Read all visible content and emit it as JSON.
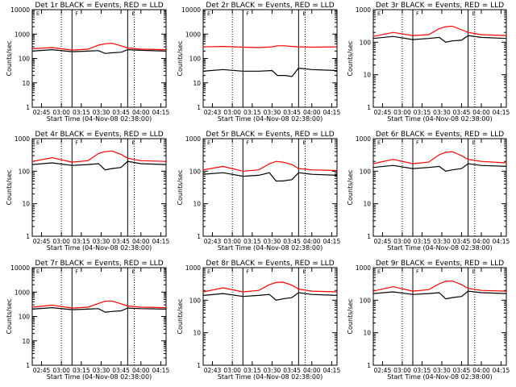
{
  "figure": {
    "y_axis_label": "Counts/sec",
    "x_axis_label": "Start Time (04-Nov-08 02:38:00)",
    "series_colors": {
      "events": "#000000",
      "lld": "#ff0000"
    },
    "flag_labels": [
      "E",
      "F",
      "E"
    ]
  },
  "chart_data": [
    {
      "type": "line",
      "title": "Det 1r BLACK = Events, RED = LLD",
      "x_ticks": [
        "02:45",
        "03:00",
        "03:15",
        "03:30",
        "03:45",
        "04:00",
        "04:15"
      ],
      "y_ticks": [
        "1",
        "10",
        "100",
        "1000",
        "10000"
      ],
      "y_scale": "log",
      "ylim": [
        1,
        10000
      ],
      "xlim": [
        "02:38",
        "04:19"
      ],
      "vertical_markers": {
        "solid": [
          "03:08",
          "03:50"
        ],
        "dotted": [
          "03:00",
          "03:55"
        ]
      },
      "x": [
        "02:38",
        "02:53",
        "03:08",
        "03:20",
        "03:28",
        "03:33",
        "03:38",
        "03:45",
        "03:50",
        "04:00",
        "04:19"
      ],
      "series": [
        {
          "values": [
            200,
            230,
            190,
            200,
            210,
            160,
            170,
            180,
            230,
            215,
            200
          ]
        },
        {
          "values": [
            250,
            280,
            220,
            240,
            350,
            400,
            420,
            330,
            270,
            240,
            230
          ]
        }
      ]
    },
    {
      "type": "line",
      "title": "Det 2r BLACK = Events, RED = LLD",
      "x_ticks": [
        "02:43",
        "03:00",
        "03:15",
        "03:30",
        "03:45",
        "04:00",
        "04:15"
      ],
      "y_ticks": [
        "1",
        "10",
        "100",
        "1000",
        "10000"
      ],
      "y_scale": "log",
      "ylim": [
        1,
        10000
      ],
      "xlim": [
        "02:38",
        "04:19"
      ],
      "vertical_markers": {
        "solid": [
          "03:08",
          "03:50"
        ],
        "dotted": [
          "03:00",
          "03:55"
        ]
      },
      "x": [
        "02:38",
        "02:53",
        "03:08",
        "03:20",
        "03:30",
        "03:34",
        "03:40",
        "03:45",
        "03:50",
        "04:00",
        "04:19"
      ],
      "series": [
        {
          "values": [
            30,
            35,
            30,
            30,
            32,
            20,
            20,
            18,
            40,
            35,
            32
          ]
        },
        {
          "values": [
            300,
            310,
            290,
            280,
            300,
            330,
            330,
            310,
            300,
            290,
            300
          ]
        }
      ]
    },
    {
      "type": "line",
      "title": "Det 3r BLACK = Events, RED = LLD",
      "x_ticks": [
        "02:45",
        "03:00",
        "03:15",
        "03:30",
        "03:45",
        "04:00",
        "04:15"
      ],
      "y_ticks": [
        "1",
        "10",
        "100",
        "1000"
      ],
      "y_scale": "log",
      "ylim": [
        1,
        1000
      ],
      "xlim": [
        "02:38",
        "04:19"
      ],
      "vertical_markers": {
        "solid": [
          "03:08",
          "03:50"
        ],
        "dotted": [
          "03:00",
          "03:55"
        ]
      },
      "x": [
        "02:38",
        "02:53",
        "03:08",
        "03:20",
        "03:28",
        "03:33",
        "03:38",
        "03:45",
        "03:50",
        "04:00",
        "04:19"
      ],
      "series": [
        {
          "values": [
            130,
            150,
            120,
            130,
            140,
            100,
            110,
            115,
            160,
            140,
            130
          ]
        },
        {
          "values": [
            150,
            200,
            160,
            170,
            260,
            300,
            310,
            240,
            200,
            170,
            160
          ]
        }
      ]
    },
    {
      "type": "line",
      "title": "Det 4r BLACK = Events, RED = LLD",
      "x_ticks": [
        "02:45",
        "03:00",
        "03:15",
        "03:30",
        "03:45",
        "04:00",
        "04:15"
      ],
      "y_ticks": [
        "1",
        "10",
        "100",
        "1000"
      ],
      "y_scale": "log",
      "ylim": [
        1,
        1000
      ],
      "xlim": [
        "02:38",
        "04:19"
      ],
      "vertical_markers": {
        "solid": [
          "03:08",
          "03:50"
        ],
        "dotted": [
          "03:00",
          "03:55"
        ]
      },
      "x": [
        "02:38",
        "02:53",
        "03:08",
        "03:20",
        "03:28",
        "03:33",
        "03:38",
        "03:45",
        "03:50",
        "04:00",
        "04:19"
      ],
      "series": [
        {
          "values": [
            160,
            180,
            150,
            160,
            170,
            110,
            120,
            130,
            200,
            170,
            160
          ]
        },
        {
          "values": [
            200,
            260,
            190,
            210,
            350,
            400,
            420,
            330,
            250,
            210,
            200
          ]
        }
      ]
    },
    {
      "type": "line",
      "title": "Det 5r BLACK = Events, RED = LLD",
      "x_ticks": [
        "02:43",
        "03:00",
        "03:15",
        "03:30",
        "03:45",
        "04:00",
        "04:15"
      ],
      "y_ticks": [
        "1",
        "10",
        "100",
        "1000"
      ],
      "y_scale": "log",
      "ylim": [
        1,
        1000
      ],
      "xlim": [
        "02:38",
        "04:19"
      ],
      "vertical_markers": {
        "solid": [
          "03:08",
          "03:50"
        ],
        "dotted": [
          "03:00",
          "03:55"
        ]
      },
      "x": [
        "02:38",
        "02:53",
        "03:08",
        "03:20",
        "03:28",
        "03:33",
        "03:38",
        "03:45",
        "03:50",
        "04:00",
        "04:19"
      ],
      "series": [
        {
          "values": [
            80,
            90,
            70,
            75,
            90,
            50,
            50,
            55,
            90,
            80,
            75
          ]
        },
        {
          "values": [
            110,
            140,
            100,
            110,
            170,
            200,
            190,
            160,
            120,
            110,
            105
          ]
        }
      ]
    },
    {
      "type": "line",
      "title": "Det 6r BLACK = Events, RED = LLD",
      "x_ticks": [
        "02:45",
        "03:00",
        "03:15",
        "03:30",
        "03:45",
        "04:00",
        "04:15"
      ],
      "y_ticks": [
        "1",
        "10",
        "100",
        "1000"
      ],
      "y_scale": "log",
      "ylim": [
        1,
        1000
      ],
      "xlim": [
        "02:38",
        "04:19"
      ],
      "vertical_markers": {
        "solid": [
          "03:08",
          "03:50"
        ],
        "dotted": [
          "03:00",
          "03:55"
        ]
      },
      "x": [
        "02:38",
        "02:53",
        "03:08",
        "03:20",
        "03:28",
        "03:33",
        "03:38",
        "03:45",
        "03:50",
        "04:00",
        "04:19"
      ],
      "series": [
        {
          "values": [
            130,
            150,
            120,
            130,
            140,
            100,
            110,
            120,
            170,
            150,
            140
          ]
        },
        {
          "values": [
            170,
            230,
            170,
            190,
            320,
            380,
            400,
            300,
            230,
            200,
            180
          ]
        }
      ]
    },
    {
      "type": "line",
      "title": "Det 7r BLACK = Events, RED = LLD",
      "x_ticks": [
        "02:45",
        "03:00",
        "03:15",
        "03:30",
        "03:45",
        "04:00",
        "04:15"
      ],
      "y_ticks": [
        "1",
        "10",
        "100",
        "1000",
        "10000"
      ],
      "y_scale": "log",
      "ylim": [
        1,
        10000
      ],
      "xlim": [
        "02:38",
        "04:19"
      ],
      "vertical_markers": {
        "solid": [
          "03:08",
          "03:50"
        ],
        "dotted": [
          "03:00",
          "03:55"
        ]
      },
      "x": [
        "02:38",
        "02:53",
        "03:08",
        "03:20",
        "03:28",
        "03:33",
        "03:38",
        "03:45",
        "03:50",
        "04:00",
        "04:19"
      ],
      "series": [
        {
          "values": [
            200,
            230,
            190,
            200,
            210,
            150,
            160,
            170,
            220,
            210,
            200
          ]
        },
        {
          "values": [
            240,
            290,
            220,
            240,
            340,
            420,
            430,
            330,
            270,
            240,
            230
          ]
        }
      ]
    },
    {
      "type": "line",
      "title": "Det 8r BLACK = Events, RED = LLD",
      "x_ticks": [
        "02:43",
        "03:00",
        "03:15",
        "03:30",
        "03:45",
        "04:00",
        "04:15"
      ],
      "y_ticks": [
        "1",
        "10",
        "100",
        "1000"
      ],
      "y_scale": "log",
      "ylim": [
        1,
        1000
      ],
      "xlim": [
        "02:38",
        "04:19"
      ],
      "vertical_markers": {
        "solid": [
          "03:08",
          "03:50"
        ],
        "dotted": [
          "03:00",
          "03:55"
        ]
      },
      "x": [
        "02:38",
        "02:53",
        "03:08",
        "03:20",
        "03:28",
        "03:33",
        "03:38",
        "03:45",
        "03:50",
        "04:00",
        "04:19"
      ],
      "series": [
        {
          "values": [
            140,
            160,
            130,
            140,
            150,
            100,
            110,
            120,
            170,
            150,
            140
          ]
        },
        {
          "values": [
            180,
            240,
            180,
            200,
            300,
            350,
            360,
            290,
            220,
            190,
            180
          ]
        }
      ]
    },
    {
      "type": "line",
      "title": "Det 9r BLACK = Events, RED = LLD",
      "x_ticks": [
        "02:45",
        "03:00",
        "03:15",
        "03:30",
        "03:45",
        "04:00",
        "04:15"
      ],
      "y_ticks": [
        "1",
        "10",
        "100",
        "1000"
      ],
      "y_scale": "log",
      "ylim": [
        1,
        1000
      ],
      "xlim": [
        "02:38",
        "04:19"
      ],
      "vertical_markers": {
        "solid": [
          "03:08",
          "03:50"
        ],
        "dotted": [
          "03:00",
          "03:55"
        ]
      },
      "x": [
        "02:38",
        "02:53",
        "03:08",
        "03:20",
        "03:28",
        "03:33",
        "03:38",
        "03:45",
        "03:50",
        "04:00",
        "04:19"
      ],
      "series": [
        {
          "values": [
            160,
            180,
            150,
            160,
            170,
            110,
            120,
            130,
            190,
            170,
            160
          ]
        },
        {
          "values": [
            190,
            260,
            190,
            210,
            320,
            380,
            390,
            300,
            230,
            200,
            190
          ]
        }
      ]
    }
  ]
}
